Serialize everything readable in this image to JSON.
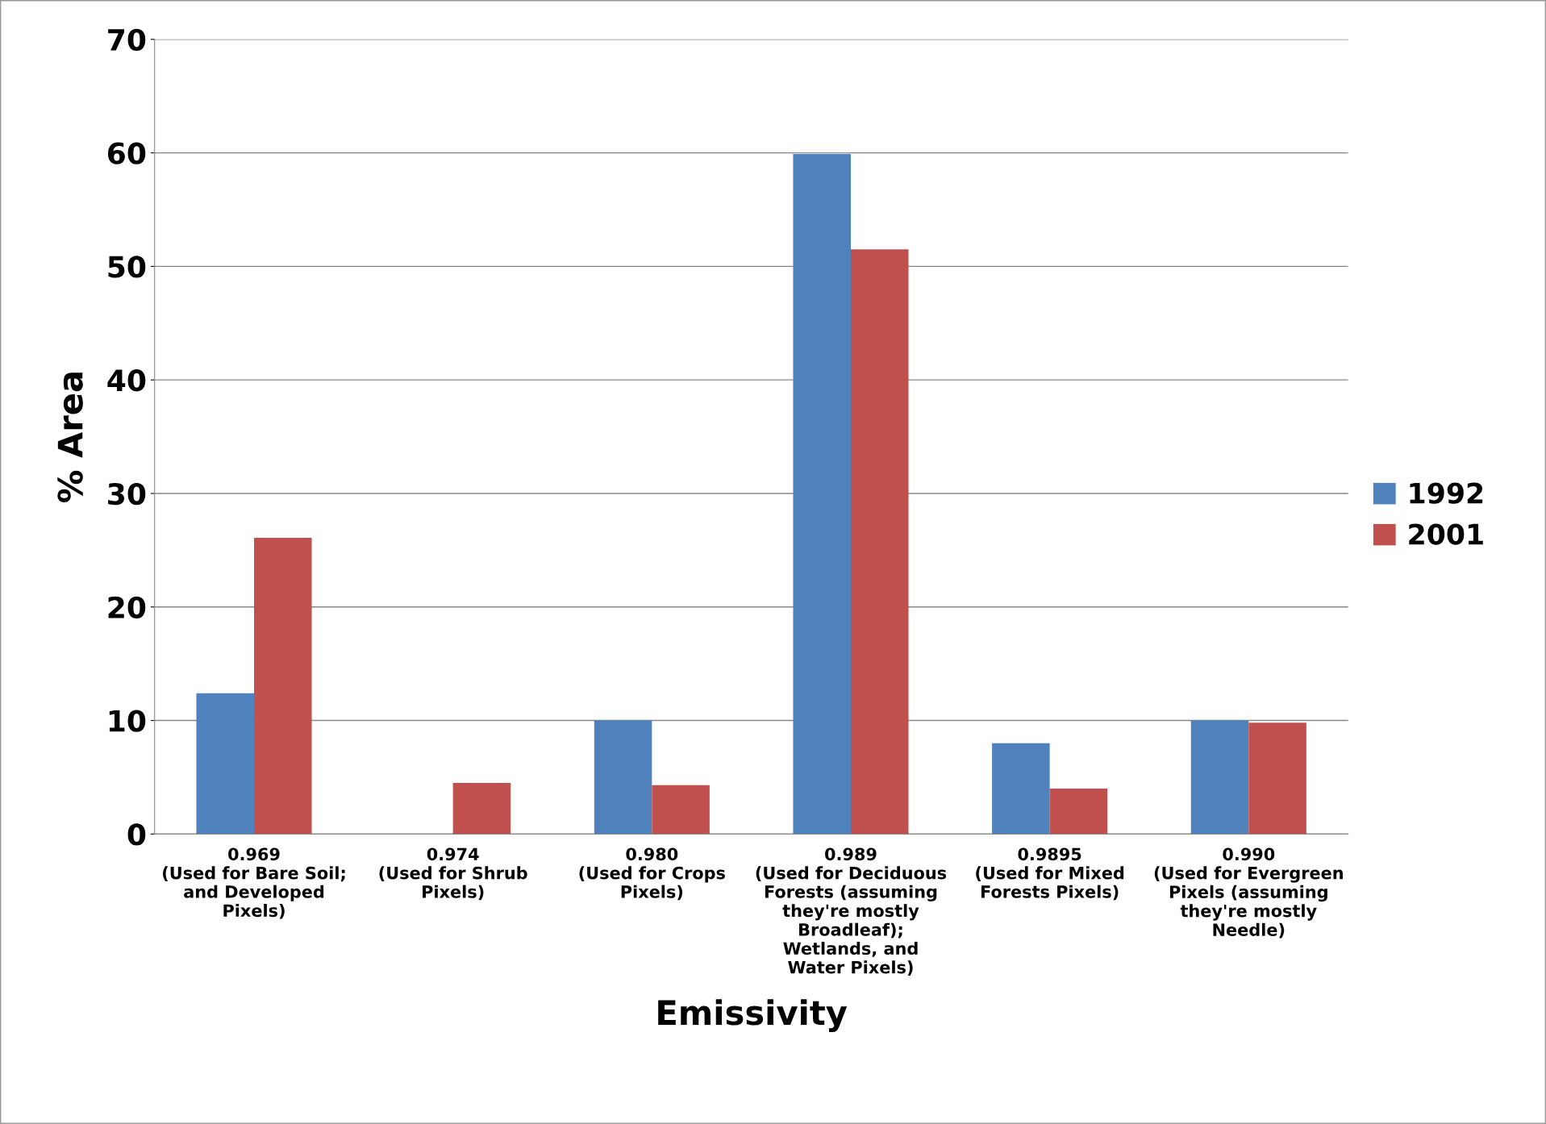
{
  "chart_data": {
    "type": "bar",
    "xlabel": "Emissivity",
    "ylabel": "% Area",
    "categories": [
      "0.969\n(Used for Bare Soil;\nand Developed\nPixels)",
      "0.974\n(Used for Shrub\nPixels)",
      "0.980\n(Used for Crops\nPixels)",
      "0.989\n(Used for Deciduous\nForests (assuming\nthey're mostly\nBroadleaf);\nWetlands, and\nWater Pixels)",
      "0.9895\n(Used for Mixed\nForests Pixels)",
      "0.990\n(Used for Evergreen\nPixels (assuming\nthey're mostly\nNeedle)"
    ],
    "series": [
      {
        "name": "1992",
        "color": "#4f81bd",
        "values": [
          12.4,
          0,
          10.0,
          59.9,
          8.0,
          10.0
        ]
      },
      {
        "name": "2001",
        "color": "#c0504d",
        "values": [
          26.1,
          4.5,
          4.3,
          51.5,
          4.0,
          9.8
        ]
      }
    ],
    "ylim": [
      0,
      70
    ],
    "yticks": [
      0,
      10,
      20,
      30,
      40,
      50,
      60,
      70
    ],
    "grid": "y",
    "legend": "right"
  }
}
